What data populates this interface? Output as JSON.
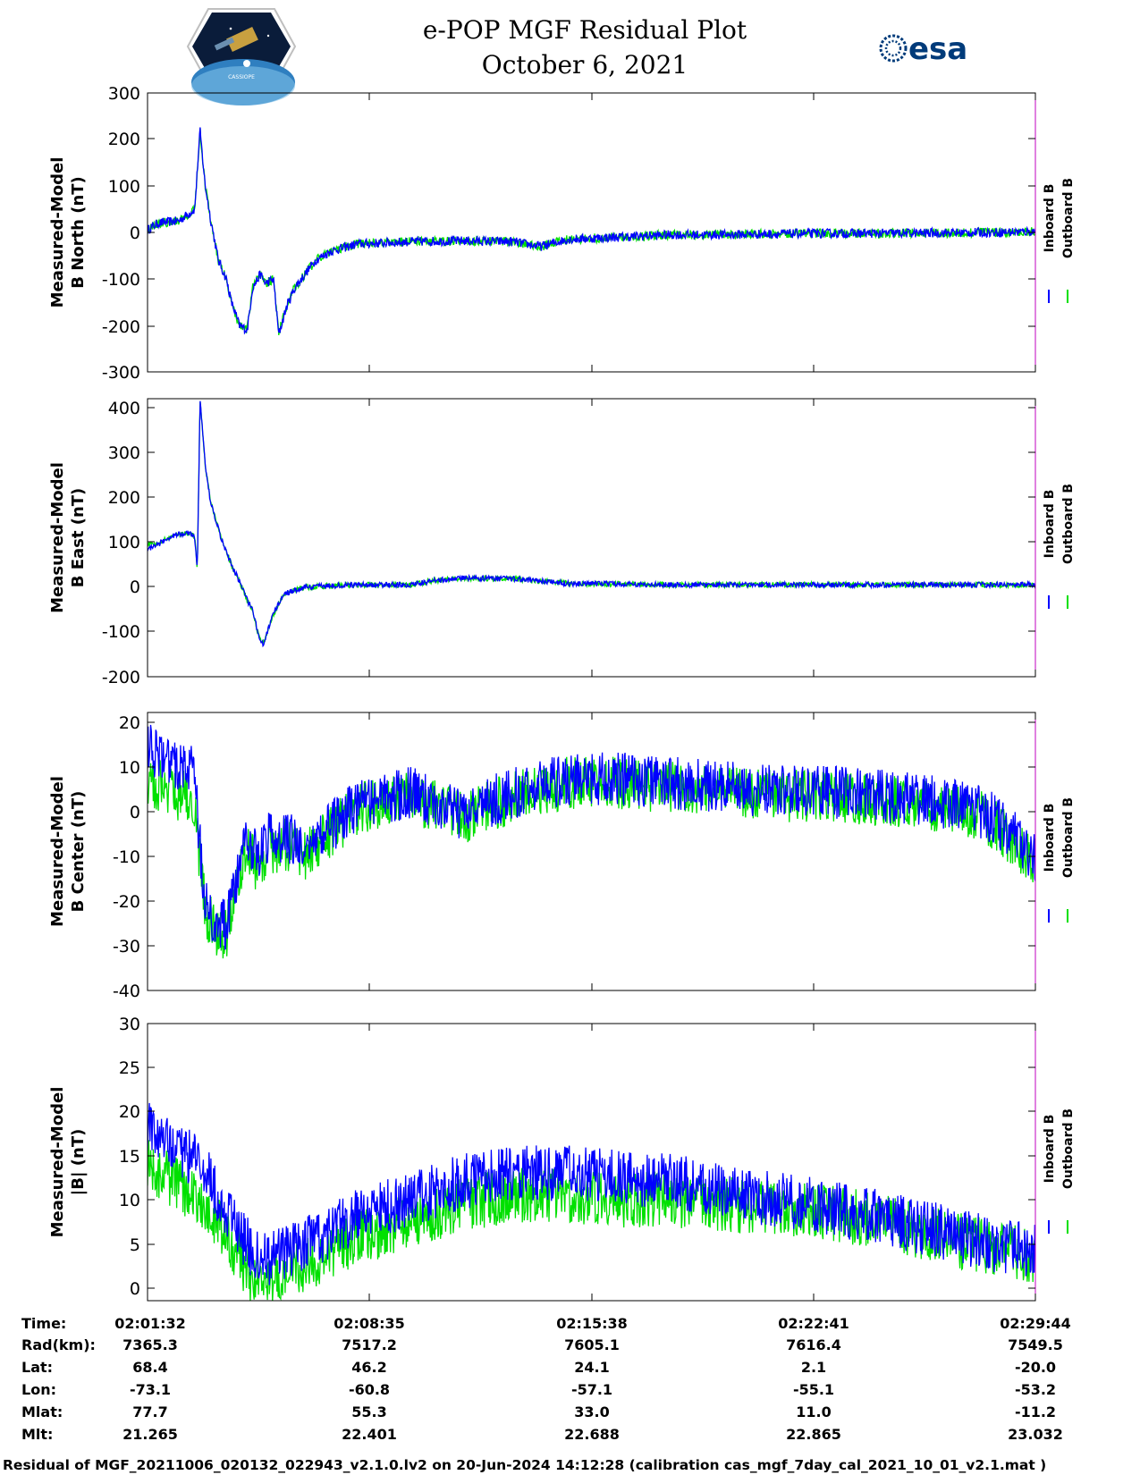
{
  "header": {
    "title_line1": "e-POP MGF Residual Plot",
    "title_line2": "October 6, 2021",
    "left_logo": "cassiope-mission-logo",
    "left_logo_text": "CASSIOPE",
    "right_logo": "esa-logo",
    "right_logo_text": "esa"
  },
  "legend": {
    "inboard": "Inboard B",
    "outboard": "Outboard B",
    "inboard_color": "#0000ff",
    "outboard_color": "#00e000"
  },
  "chart_data": [
    {
      "type": "line",
      "ylabel_line1": "Measured-Model",
      "ylabel_line2": "B North (nT)",
      "ylim": [
        -300,
        300
      ],
      "yticks": [
        "300",
        "200",
        "100",
        "0",
        "-100",
        "-200",
        "-300"
      ],
      "xlim": [
        0,
        1692
      ],
      "grid": false,
      "series": [
        {
          "name": "Inboard B",
          "color": "#0000ff",
          "x": [
            0,
            20,
            60,
            90,
            100,
            110,
            120,
            135,
            150,
            160,
            175,
            190,
            200,
            215,
            225,
            240,
            250,
            265,
            280,
            300,
            320,
            350,
            400,
            500,
            600,
            700,
            720,
            750,
            800,
            900,
            1000,
            1100,
            1200,
            1300,
            1400,
            1500,
            1600,
            1692
          ],
          "y": [
            5,
            20,
            25,
            50,
            220,
            100,
            30,
            -60,
            -100,
            -150,
            -200,
            -210,
            -120,
            -90,
            -110,
            -100,
            -220,
            -160,
            -120,
            -90,
            -60,
            -40,
            -25,
            -20,
            -18,
            -20,
            -25,
            -30,
            -15,
            -10,
            -5,
            -5,
            -3,
            -2,
            -2,
            -1,
            0,
            2
          ]
        },
        {
          "name": "Outboard B",
          "color": "#00e000",
          "x": [
            0,
            20,
            60,
            90,
            100,
            110,
            120,
            135,
            150,
            160,
            175,
            190,
            200,
            215,
            225,
            240,
            250,
            265,
            280,
            300,
            320,
            350,
            400,
            500,
            600,
            700,
            720,
            750,
            800,
            900,
            1000,
            1100,
            1200,
            1300,
            1400,
            1500,
            1600,
            1692
          ],
          "y": [
            5,
            20,
            25,
            50,
            218,
            100,
            30,
            -60,
            -100,
            -150,
            -200,
            -208,
            -120,
            -90,
            -110,
            -100,
            -218,
            -160,
            -120,
            -90,
            -60,
            -40,
            -25,
            -20,
            -18,
            -20,
            -25,
            -30,
            -15,
            -10,
            -5,
            -5,
            -3,
            -2,
            -2,
            -1,
            0,
            2
          ]
        }
      ]
    },
    {
      "type": "line",
      "ylabel_line1": "Measured-Model",
      "ylabel_line2": "B East (nT)",
      "ylim": [
        -200,
        420
      ],
      "yticks": [
        "400",
        "300",
        "200",
        "100",
        "0",
        "-100",
        "-200"
      ],
      "xlim": [
        0,
        1692
      ],
      "grid": false,
      "series": [
        {
          "name": "Inboard B",
          "color": "#0000ff",
          "x": [
            0,
            20,
            40,
            60,
            80,
            90,
            95,
            100,
            110,
            120,
            140,
            160,
            180,
            190,
            200,
            210,
            220,
            240,
            260,
            300,
            400,
            500,
            550,
            600,
            700,
            800,
            1000,
            1200,
            1400,
            1600,
            1692
          ],
          "y": [
            85,
            95,
            110,
            118,
            120,
            110,
            40,
            420,
            270,
            190,
            110,
            50,
            0,
            -30,
            -50,
            -100,
            -130,
            -60,
            -15,
            0,
            5,
            5,
            15,
            20,
            18,
            8,
            5,
            5,
            5,
            5,
            5
          ]
        },
        {
          "name": "Outboard B",
          "color": "#00e000",
          "x": [
            0,
            20,
            40,
            60,
            80,
            90,
            95,
            100,
            110,
            120,
            140,
            160,
            180,
            190,
            200,
            210,
            220,
            240,
            260,
            300,
            400,
            500,
            550,
            600,
            700,
            800,
            1000,
            1200,
            1400,
            1600,
            1692
          ],
          "y": [
            95,
            98,
            110,
            118,
            120,
            110,
            40,
            418,
            270,
            190,
            110,
            50,
            0,
            -30,
            -50,
            -100,
            -128,
            -60,
            -15,
            0,
            5,
            5,
            15,
            20,
            18,
            8,
            5,
            5,
            5,
            5,
            5
          ]
        }
      ]
    },
    {
      "type": "line",
      "ylabel_line1": "Measured-Model",
      "ylabel_line2": "B Center (nT)",
      "ylim": [
        -40,
        23
      ],
      "yticks": [
        "20",
        "10",
        "0",
        "-10",
        "-20",
        "-30",
        "-40"
      ],
      "xlim": [
        0,
        1692
      ],
      "grid": false,
      "series": [
        {
          "name": "Inboard B",
          "color": "#0000ff",
          "x": [
            0,
            40,
            90,
            95,
            110,
            130,
            150,
            170,
            190,
            210,
            230,
            260,
            300,
            400,
            500,
            600,
            700,
            800,
            900,
            1000,
            1100,
            1200,
            1300,
            1400,
            1500,
            1600,
            1650,
            1692
          ],
          "y": [
            15,
            12,
            10,
            0,
            -20,
            -25,
            -25,
            -15,
            -5,
            -10,
            -5,
            -5,
            -8,
            2,
            5,
            0,
            5,
            8,
            8,
            7,
            6,
            5,
            5,
            4,
            3,
            0,
            -5,
            -10
          ]
        },
        {
          "name": "Outboard B",
          "color": "#00e000",
          "x": [
            0,
            40,
            90,
            95,
            110,
            130,
            150,
            170,
            190,
            210,
            230,
            260,
            300,
            400,
            500,
            600,
            700,
            800,
            900,
            1000,
            1100,
            1200,
            1300,
            1400,
            1500,
            1600,
            1650,
            1692
          ],
          "y": [
            8,
            5,
            3,
            -5,
            -22,
            -27,
            -27,
            -17,
            -8,
            -12,
            -8,
            -7,
            -9,
            1,
            4,
            -1,
            4,
            7,
            7,
            6,
            5,
            4,
            4,
            3,
            2,
            -1,
            -6,
            -11
          ]
        }
      ]
    },
    {
      "type": "line",
      "ylabel_line1": "Measured-Model",
      "ylabel_line2": "|B| (nT)",
      "ylim": [
        -1.5,
        30
      ],
      "yticks": [
        "30",
        "25",
        "20",
        "15",
        "10",
        "5",
        "0"
      ],
      "xlim": [
        0,
        1692
      ],
      "grid": false,
      "series": [
        {
          "name": "Inboard B",
          "color": "#0000ff",
          "x": [
            0,
            50,
            100,
            150,
            200,
            220,
            250,
            300,
            400,
            500,
            600,
            700,
            800,
            900,
            1000,
            1100,
            1200,
            1300,
            1400,
            1500,
            1600,
            1692
          ],
          "y": [
            18,
            16,
            14,
            9,
            4,
            3,
            3.5,
            5,
            8,
            10,
            12,
            13,
            13,
            12.5,
            12,
            11,
            10,
            9,
            8,
            6.5,
            5,
            4
          ]
        },
        {
          "name": "Outboard B",
          "color": "#00e000",
          "x": [
            0,
            50,
            100,
            150,
            200,
            220,
            250,
            300,
            400,
            500,
            600,
            700,
            800,
            900,
            1000,
            1100,
            1200,
            1300,
            1400,
            1500,
            1600,
            1692
          ],
          "y": [
            14,
            12,
            10,
            6,
            1,
            0.5,
            1,
            2.5,
            5.5,
            7.5,
            9.5,
            10.5,
            10.5,
            10,
            10,
            9.5,
            9,
            8.5,
            7.5,
            6,
            4.5,
            3.5
          ]
        }
      ]
    }
  ],
  "info_table": {
    "row_labels": [
      "Time:",
      "Rad(km):",
      "Lat:",
      "Lon:",
      "Mlat:",
      "Mlt:"
    ],
    "columns": [
      [
        "02:01:32",
        "7365.3",
        "68.4",
        "-73.1",
        "77.7",
        "21.265"
      ],
      [
        "02:08:35",
        "7517.2",
        "46.2",
        "-60.8",
        "55.3",
        "22.401"
      ],
      [
        "02:15:38",
        "7605.1",
        "24.1",
        "-57.1",
        "33.0",
        "22.688"
      ],
      [
        "02:22:41",
        "7616.4",
        "2.1",
        "-55.1",
        "11.0",
        "22.865"
      ],
      [
        "02:29:44",
        "7549.5",
        "-20.0",
        "-53.2",
        "-11.2",
        "23.032"
      ]
    ]
  },
  "footer": "Residual of MGF_20211006_020132_022943_v2.1.0.lv2 on 20-Jun-2024 14:12:28 (calibration cas_mgf_7day_cal_2021_10_01_v2.1.mat )"
}
